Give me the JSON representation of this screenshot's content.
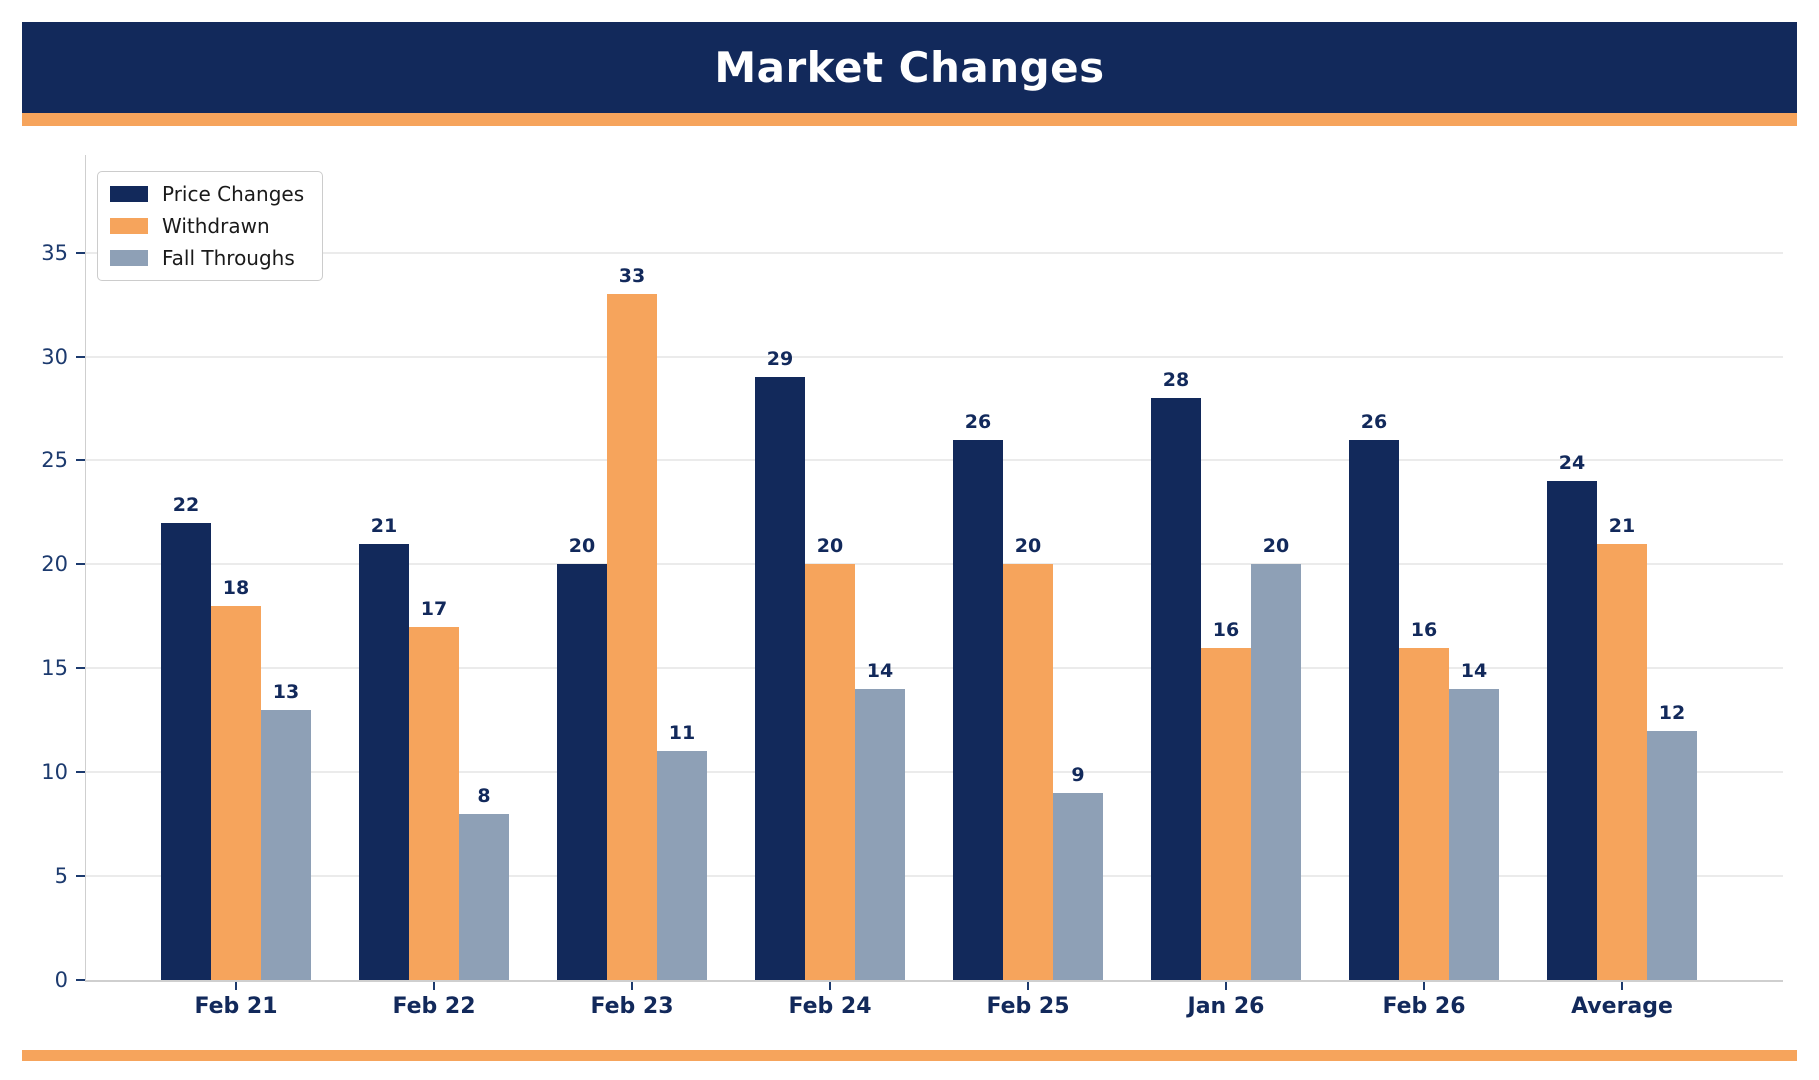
{
  "header": {
    "title": "Market Changes"
  },
  "chart_data": {
    "type": "bar",
    "title": "Market Changes",
    "categories": [
      "Feb 21",
      "Feb 22",
      "Feb 23",
      "Feb 24",
      "Feb 25",
      "Jan 26",
      "Feb 26",
      "Average"
    ],
    "series": [
      {
        "name": "Price Changes",
        "color": "#12295B",
        "values": [
          22,
          21,
          20,
          29,
          26,
          28,
          26,
          24
        ]
      },
      {
        "name": "Withdrawn",
        "color": "#F6A45C",
        "values": [
          18,
          17,
          33,
          20,
          20,
          16,
          16,
          21
        ]
      },
      {
        "name": "Fall Throughs",
        "color": "#8EA0B6",
        "values": [
          13,
          8,
          11,
          14,
          9,
          20,
          14,
          12
        ]
      }
    ],
    "y_ticks": [
      0,
      5,
      10,
      15,
      20,
      25,
      30,
      35
    ],
    "ylim": [
      0,
      39.7
    ],
    "grid": true,
    "legend_position": "upper-left",
    "xlabel": "",
    "ylabel": ""
  },
  "colors": {
    "header_bg": "#12295B",
    "title_text": "#FFFFFF",
    "accent": "#F6A45C",
    "grid_line": "#EBEBEB",
    "spine": "#CFCFCF",
    "tick_label": "#1C3A6E",
    "value_label": "#12295B",
    "legend_text": "#1A1A1A",
    "legend_border": "#CCCCCC"
  }
}
